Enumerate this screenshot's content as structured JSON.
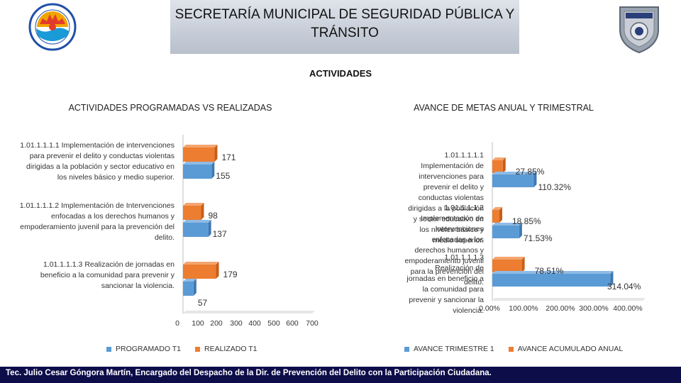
{
  "header": {
    "title": "SECRETARÍA MUNICIPAL DE SEGURIDAD PÚBLICA Y TRÁNSITO"
  },
  "logos": {
    "left": "municipio-benito-juarez-seal",
    "right": "police-shield-badge"
  },
  "section_title": "ACTIVIDADES",
  "footer": {
    "text": "Tec. Julio Cesar Góngora Martín, Encargado del Despacho de la Dir. de Prevención del Delito con la Participación Ciudadana."
  },
  "colors": {
    "blue": "#5b9bd5",
    "orange": "#ed7d31",
    "footer": "#0d0d4a"
  },
  "chart_data": [
    {
      "type": "bar",
      "orientation": "horizontal",
      "title": "ACTIVIDADES PROGRAMADAS VS REALIZADAS",
      "categories": [
        "1.01.1.1.1.1 Implementación de intervenciones para prevenir el delito y conductas violentas dirigidas a la población y sector educativo en los niveles básico y medio superior.",
        "1.01.1.1.1.2 Implementación de Intervenciones enfocadas a los derechos humanos y empoderamiento juvenil para la prevención del delito.",
        "1.01.1.1.1.3 Realización de jornadas en beneficio a la comunidad para prevenir y sancionar la violencia."
      ],
      "series": [
        {
          "name": "PROGRAMADO T1",
          "values": [
            155,
            137,
            57
          ]
        },
        {
          "name": "REALIZADO T1",
          "values": [
            171,
            98,
            179
          ]
        }
      ],
      "data_labels": {
        "programado": [
          "155",
          "137",
          "57"
        ],
        "realizado": [
          "171",
          "98",
          "179"
        ]
      },
      "xticks": [
        "0",
        "100",
        "200",
        "300",
        "400",
        "500",
        "600",
        "700"
      ],
      "xlim": [
        0,
        700
      ],
      "legend": "bottom"
    },
    {
      "type": "bar",
      "orientation": "horizontal",
      "title": "AVANCE DE METAS ANUAL Y TRIMESTRAL",
      "categories": [
        "1.01.1.1.1.1 Implementación de intervenciones para prevenir el delito y conductas violentas dirigidas a la población y sector educativo en los niveles básico y medio superior.",
        "1.01.1.1.1.2 Implementación de Intervenciones enfocadas a los derechos humanos y empoderamiento juvenil para la prevención del delito.",
        "1.01.1.1.1.3 Realización de jornadas en beneficio a la comunidad para prevenir y sancionar la violencia."
      ],
      "series": [
        {
          "name": "AVANCE TRIMESTRE 1",
          "values": [
            110.32,
            71.53,
            314.04
          ]
        },
        {
          "name": "AVANCE ACUMULADO ANUAL",
          "values": [
            27.85,
            18.85,
            78.51
          ]
        }
      ],
      "data_labels": {
        "trimestre": [
          "110.32%",
          "71.53%",
          "314.04%"
        ],
        "anual": [
          "27.85%",
          "18.85%",
          "78.51%"
        ]
      },
      "xticks": [
        "0.00%",
        "100.00%",
        "200.00%",
        "300.00%",
        "400.00%"
      ],
      "xlim": [
        0,
        400
      ],
      "legend": "bottom"
    }
  ]
}
